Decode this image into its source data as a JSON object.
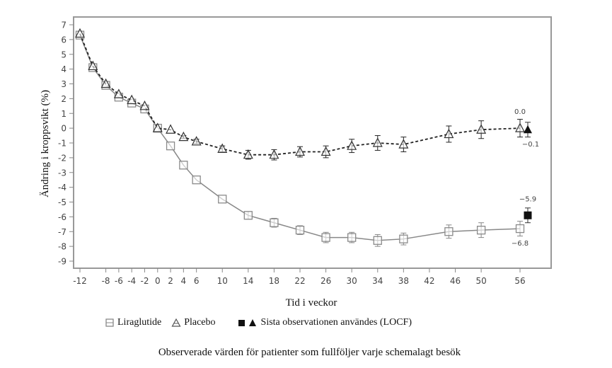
{
  "chart_data": {
    "type": "line",
    "title": "",
    "xlabel": "Tid i veckor",
    "ylabel": "Ändring i kroppsvikt (%)",
    "xlim": [
      -13,
      59
    ],
    "ylim": [
      -9.5,
      7.5
    ],
    "x_ticks": [
      -12,
      -8,
      -6,
      -4,
      -2,
      0,
      2,
      4,
      6,
      10,
      14,
      18,
      22,
      26,
      30,
      34,
      38,
      42,
      46,
      50,
      56
    ],
    "y_ticks": [
      7,
      6,
      5,
      4,
      3,
      2,
      1,
      0,
      -1,
      -2,
      -3,
      -4,
      -5,
      -6,
      -7,
      -8,
      -9
    ],
    "grid": false,
    "series": [
      {
        "name": "Liraglutide",
        "marker": "open-square",
        "line": "solid",
        "color": "#888888",
        "x": [
          -12,
          -10,
          -8,
          -6,
          -4,
          -2,
          0,
          2,
          4,
          6,
          10,
          14,
          18,
          22,
          26,
          30,
          34,
          38,
          45,
          50,
          56
        ],
        "y": [
          6.3,
          4.1,
          2.9,
          2.1,
          1.7,
          1.3,
          0.0,
          -1.2,
          -2.5,
          -3.5,
          -4.8,
          -5.9,
          -6.4,
          -6.9,
          -7.4,
          -7.4,
          -7.6,
          -7.5,
          -7.0,
          -6.9,
          -6.8
        ],
        "err": [
          0,
          0,
          0,
          0,
          0,
          0,
          0,
          0,
          0,
          0,
          0,
          0.25,
          0.3,
          0.3,
          0.35,
          0.35,
          0.4,
          0.4,
          0.45,
          0.5,
          0.5
        ]
      },
      {
        "name": "Placebo",
        "marker": "open-triangle",
        "line": "dashed",
        "color": "#222222",
        "x": [
          -12,
          -10,
          -8,
          -6,
          -4,
          -2,
          0,
          2,
          4,
          6,
          10,
          14,
          18,
          22,
          26,
          30,
          34,
          38,
          45,
          50,
          56
        ],
        "y": [
          6.4,
          4.2,
          3.0,
          2.3,
          1.9,
          1.5,
          0.0,
          -0.1,
          -0.6,
          -0.9,
          -1.4,
          -1.8,
          -1.8,
          -1.6,
          -1.6,
          -1.2,
          -1.0,
          -1.1,
          -0.4,
          -0.1,
          0.0
        ],
        "err": [
          0,
          0,
          0,
          0,
          0,
          0,
          0,
          0,
          0.1,
          0.15,
          0.2,
          0.3,
          0.35,
          0.35,
          0.4,
          0.45,
          0.5,
          0.5,
          0.55,
          0.6,
          0.6
        ]
      }
    ],
    "locf": [
      {
        "name": "Liraglutide LOCF",
        "marker": "filled-square",
        "x": 57.2,
        "y": -5.9,
        "err": 0.5
      },
      {
        "name": "Placebo LOCF",
        "marker": "filled-triangle",
        "x": 57.2,
        "y": -0.1,
        "err": 0.5
      }
    ],
    "annotations": [
      {
        "text": "0.0",
        "x": 56,
        "y": 0.0,
        "pos": "above"
      },
      {
        "text": "−0.1",
        "x": 57.2,
        "y": -0.1,
        "pos": "below"
      },
      {
        "text": "−5.9",
        "x": 57.2,
        "y": -5.9,
        "pos": "above"
      },
      {
        "text": "−6.8",
        "x": 56,
        "y": -6.8,
        "pos": "below"
      }
    ],
    "legend": {
      "placement": "bottom",
      "items": [
        {
          "label": "Liraglutide",
          "marker": "open-square"
        },
        {
          "label": "Placebo",
          "marker": "open-triangle"
        },
        {
          "label": "Sista observationen användes (LOCF)",
          "marker": "filled-square-triangle"
        }
      ]
    },
    "caption": "Observerade värden för patienter som fullföljer varje schemalagt besök"
  }
}
